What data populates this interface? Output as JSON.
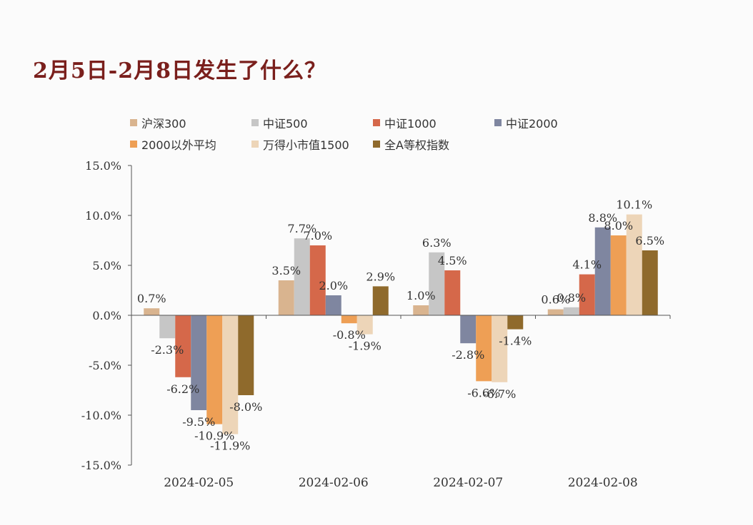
{
  "page": {
    "title": "2月5日-2月8日发生了什么？"
  },
  "chart_data": {
    "type": "bar",
    "title": "2月5日-2月8日发生了什么？",
    "xlabel": "",
    "ylabel": "",
    "ylim": [
      -15,
      15
    ],
    "yticks": [
      "15.0%",
      "10.0%",
      "5.0%",
      "0.0%",
      "-5.0%",
      "-10.0%",
      "-15.0%"
    ],
    "ytick_values": [
      15,
      10,
      5,
      0,
      -5,
      -10,
      -15
    ],
    "categories": [
      "2024-02-05",
      "2024-02-06",
      "2024-02-07",
      "2024-02-08"
    ],
    "legend_position": "top",
    "series": [
      {
        "name": "沪深300",
        "color": "#d9b48f",
        "values": [
          0.7,
          3.5,
          1.0,
          0.6
        ],
        "labels": [
          "0.7%",
          "3.5%",
          "1.0%",
          "0.6%"
        ]
      },
      {
        "name": "中证500",
        "color": "#c6c6c6",
        "values": [
          -2.3,
          7.7,
          6.3,
          0.8
        ],
        "labels": [
          "-2.3%",
          "7.7%",
          "6.3%",
          "0.8%"
        ]
      },
      {
        "name": "中证1000",
        "color": "#d5684a",
        "values": [
          -6.2,
          7.0,
          4.5,
          4.1
        ],
        "labels": [
          "-6.2%",
          "7.0%",
          "4.5%",
          "4.1%"
        ]
      },
      {
        "name": "中证2000",
        "color": "#7f86a0",
        "values": [
          -9.5,
          2.0,
          -2.8,
          8.8
        ],
        "labels": [
          "-9.5%",
          "2.0%",
          "-2.8%",
          "8.8%"
        ]
      },
      {
        "name": "2000以外平均",
        "color": "#ee9f55",
        "values": [
          -10.9,
          -0.8,
          -6.6,
          8.0
        ],
        "labels": [
          "-10.9%",
          "-0.8%",
          "-6.6%",
          "8.0%"
        ]
      },
      {
        "name": "万得小市值1500",
        "color": "#edd5b8",
        "values": [
          -11.9,
          -1.9,
          -6.7,
          10.1
        ],
        "labels": [
          "-11.9%",
          "-1.9%",
          "-6.7%",
          "10.1%"
        ]
      },
      {
        "name": "全A等权指数",
        "color": "#8f6a2c",
        "values": [
          -8.0,
          2.9,
          -1.4,
          6.5
        ],
        "labels": [
          "-8.0%",
          "2.9%",
          "-1.4%",
          "6.5%"
        ]
      }
    ]
  }
}
